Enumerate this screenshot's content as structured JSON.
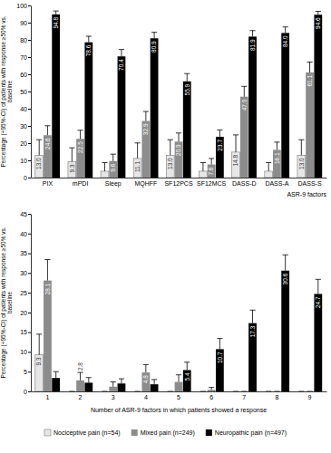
{
  "chart_data": [
    {
      "type": "bar",
      "x_label": "ASR-9 factors",
      "y_label": "Percentage (+95%-CI) of patients with response ≥50% vs. baseline",
      "categories": [
        "PIX",
        "mPDI",
        "Sleep",
        "MQHFF",
        "SF12PCS",
        "SF12MCS",
        "DASS-D",
        "DASS-A",
        "DASS-S"
      ],
      "ylim": [
        0,
        100
      ],
      "yticks": [
        0,
        10,
        20,
        30,
        40,
        50,
        60,
        70,
        80,
        90,
        100
      ],
      "data_labels": true,
      "series": [
        {
          "color": "#e6e6e6",
          "values": [
            13.0,
            9.3,
            3.7,
            11.1,
            13.0,
            3.7,
            14.8,
            3.7,
            13.0
          ],
          "value_labels": [
            "13.0",
            "9.3",
            null,
            "11.1",
            "13.0",
            null,
            "14.8",
            null,
            "13.0"
          ],
          "errors": [
            9,
            8,
            5,
            9,
            9,
            5,
            10,
            5,
            9
          ]
        },
        {
          "color": "#8c8c8c",
          "values": [
            24.6,
            22.5,
            9.6,
            32.9,
            20.9,
            7.6,
            47.0,
            16.1,
            61.1
          ],
          "value_labels": [
            "24.6",
            "22.5",
            "9.6",
            "32.9",
            "20.9",
            "7.6",
            "47.0",
            "16.1",
            "61.1"
          ],
          "errors": [
            5.5,
            5,
            4,
            5.5,
            5,
            3.5,
            6,
            4.5,
            6
          ]
        },
        {
          "color": "#000000",
          "values": [
            94.8,
            78.6,
            70.4,
            80.9,
            55.9,
            23.7,
            81.9,
            84.0,
            94.6
          ],
          "value_labels": [
            "94.8",
            "78.6",
            "70.4",
            "80.9",
            "55.9",
            "23.7",
            "81.9",
            "84.0",
            "94.6"
          ],
          "errors": [
            2,
            3.5,
            4,
            3.5,
            4.5,
            4,
            3.5,
            3.5,
            2
          ]
        }
      ]
    },
    {
      "type": "bar",
      "x_label": "Number of ASR-9 factors in which patients showed a response",
      "y_label": "Percentage (+95%-CI) of patients with response ≥50% vs. baseline",
      "categories": [
        "1",
        "2",
        "3",
        "4",
        "5",
        "6",
        "7",
        "8",
        "9"
      ],
      "ylim": [
        0,
        45
      ],
      "yticks": [
        0,
        5,
        10,
        15,
        20,
        25,
        30,
        35,
        40,
        45
      ],
      "data_labels": true,
      "legend": "bottom",
      "series": [
        {
          "name": "Nociceptive pain (n=54)",
          "color": "#e6e6e6",
          "values": [
            9.3,
            0,
            0,
            0,
            0,
            0,
            0,
            0,
            0
          ],
          "value_labels": [
            "9.3",
            null,
            null,
            null,
            null,
            null,
            null,
            null,
            null
          ],
          "errors": [
            5.2,
            0,
            0,
            0,
            0,
            0,
            0,
            0,
            0
          ]
        },
        {
          "name": "Mixed pain (n=249)",
          "color": "#8c8c8c",
          "values": [
            28.1,
            2.8,
            1.2,
            4.8,
            2.4,
            0.4,
            0,
            0,
            0
          ],
          "value_labels": [
            "28.1",
            "2.8",
            null,
            "4.8",
            null,
            null,
            null,
            null,
            null
          ],
          "errors": [
            5.3,
            2,
            1.2,
            2,
            1.8,
            0.6,
            0,
            0,
            0
          ]
        },
        {
          "name": "Neuropathic pain (n=497)",
          "color": "#000000",
          "values": [
            3.4,
            2.2,
            2.0,
            1.8,
            5.4,
            10.7,
            17.3,
            30.6,
            24.7
          ],
          "value_labels": [
            null,
            null,
            null,
            null,
            "5.4",
            "10.7",
            "17.3",
            "30.6",
            "24.7"
          ],
          "errors": [
            1.6,
            1.3,
            1.2,
            1.2,
            2,
            2.7,
            3.3,
            4,
            3.7
          ]
        }
      ]
    }
  ]
}
